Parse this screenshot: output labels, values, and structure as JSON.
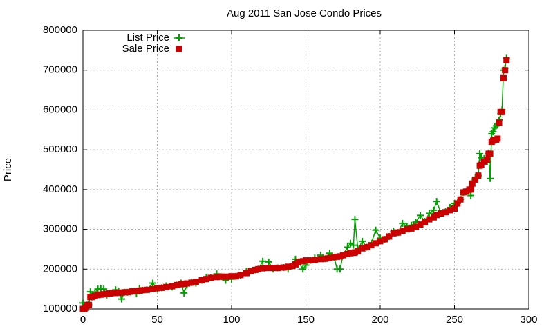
{
  "chart_data": {
    "type": "line",
    "title": "Aug 2011 San Jose Condo Prices",
    "y_label": "Price",
    "xlim": [
      0,
      300
    ],
    "xticks": [
      0,
      50,
      100,
      150,
      200,
      250,
      300
    ],
    "ylim": [
      100000,
      800000
    ],
    "yticks": [
      100000,
      200000,
      300000,
      400000,
      500000,
      600000,
      700000,
      800000
    ],
    "grid": true,
    "legend": "top-left",
    "x": [
      0,
      1,
      2,
      3,
      4,
      5,
      6,
      8,
      10,
      12,
      14,
      16,
      18,
      20,
      22,
      24,
      26,
      28,
      30,
      33,
      36,
      38,
      40,
      43,
      47,
      50,
      53,
      56,
      60,
      63,
      66,
      68,
      70,
      73,
      76,
      80,
      83,
      86,
      90,
      93,
      96,
      100,
      103,
      106,
      110,
      113,
      116,
      118,
      121,
      125,
      128,
      131,
      135,
      138,
      141,
      143,
      145,
      148,
      150,
      153,
      156,
      160,
      163,
      166,
      169,
      171,
      173,
      175,
      178,
      180,
      182,
      183,
      185,
      188,
      191,
      194,
      197,
      200,
      203,
      206,
      209,
      212,
      215,
      218,
      221,
      224,
      227,
      230,
      233,
      236,
      238,
      241,
      244,
      247,
      250,
      252,
      254,
      256,
      258,
      260,
      261,
      262,
      264,
      266,
      267,
      268,
      270,
      272,
      273,
      274,
      275,
      276,
      277,
      278,
      279,
      280,
      281,
      282,
      283,
      284,
      285
    ],
    "series": [
      {
        "name": "List Price",
        "color": "#00a000",
        "style": "linespoints",
        "values": [
          115000,
          100000,
          103000,
          110000,
          110000,
          143000,
          130000,
          140000,
          150000,
          152000,
          150000,
          135000,
          140000,
          140000,
          148000,
          145000,
          125000,
          142000,
          142000,
          144000,
          138000,
          152000,
          147000,
          148000,
          165000,
          150000,
          153000,
          158000,
          155000,
          160000,
          165000,
          140000,
          160000,
          166000,
          165000,
          172000,
          180000,
          178000,
          188000,
          181000,
          172000,
          175000,
          182000,
          185000,
          195000,
          195000,
          198000,
          200000,
          220000,
          218000,
          200000,
          203000,
          204000,
          200000,
          208000,
          225000,
          218000,
          200000,
          210000,
          222000,
          228000,
          235000,
          226000,
          240000,
          230000,
          200000,
          200000,
          235000,
          255000,
          265000,
          260000,
          325000,
          250000,
          270000,
          255000,
          265000,
          298000,
          278000,
          275000,
          282000,
          295000,
          292000,
          315000,
          308000,
          310000,
          318000,
          335000,
          320000,
          340000,
          348000,
          370000,
          340000,
          345000,
          355000,
          365000,
          365000,
          375000,
          393000,
          395000,
          400000,
          385000,
          420000,
          430000,
          435000,
          490000,
          480000,
          478000,
          470000,
          490000,
          428000,
          540000,
          545000,
          555000,
          560000,
          565000,
          575000,
          590000,
          600000,
          700000,
          705000,
          730000
        ]
      },
      {
        "name": "Sale Price",
        "color": "#cc0000",
        "style": "points",
        "values": [
          100000,
          100000,
          103000,
          110000,
          110000,
          130000,
          130000,
          132000,
          135000,
          136000,
          137000,
          138000,
          139000,
          140000,
          140000,
          141000,
          141000,
          142000,
          142000,
          144000,
          145000,
          146000,
          147000,
          148000,
          150000,
          152000,
          153000,
          155000,
          157000,
          160000,
          162000,
          163000,
          164000,
          166000,
          168000,
          172000,
          175000,
          178000,
          180000,
          181000,
          181000,
          182000,
          182000,
          185000,
          190000,
          195000,
          198000,
          200000,
          202000,
          203000,
          203000,
          203000,
          204000,
          206000,
          208000,
          212000,
          218000,
          220000,
          222000,
          222000,
          223000,
          225000,
          226000,
          228000,
          230000,
          231000,
          232000,
          235000,
          238000,
          240000,
          241000,
          242000,
          245000,
          252000,
          255000,
          260000,
          265000,
          270000,
          275000,
          282000,
          290000,
          292000,
          296000,
          300000,
          302000,
          306000,
          312000,
          318000,
          325000,
          330000,
          336000,
          340000,
          343000,
          348000,
          352000,
          365000,
          375000,
          393000,
          395000,
          400000,
          400000,
          415000,
          425000,
          435000,
          460000,
          462000,
          470000,
          475000,
          490000,
          490000,
          520000,
          523000,
          525000,
          525000,
          528000,
          568000,
          595000,
          595000,
          680000,
          700000,
          725000
        ]
      }
    ]
  }
}
